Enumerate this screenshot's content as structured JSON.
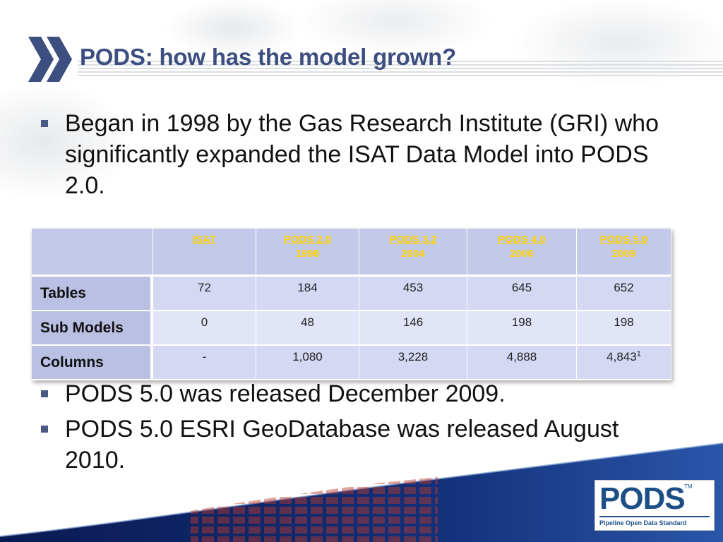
{
  "slide": {
    "title": "PODS: how has the model grown?",
    "bullets_top": [
      "Began in 1998 by the Gas Research Institute (GRI) who significantly expanded the ISAT Data Model into PODS 2.0."
    ],
    "bullets_bottom": [
      "PODS 5.0 was released December 2009.",
      "PODS 5.0 ESRI GeoDatabase was released August 2010."
    ]
  },
  "table": {
    "columns": [
      {
        "version": "ISAT",
        "year": ""
      },
      {
        "version": "PODS 2.0",
        "year": "1998"
      },
      {
        "version": "PODS 3.2",
        "year": "2004"
      },
      {
        "version": "PODS 4.0",
        "year": "2006"
      },
      {
        "version": "PODS 5.0",
        "year": "2009"
      }
    ],
    "rows": [
      {
        "label": "Tables",
        "values": [
          "72",
          "184",
          "453",
          "645",
          "652"
        ]
      },
      {
        "label": "Sub Models",
        "values": [
          "0",
          "48",
          "146",
          "198",
          "198"
        ]
      },
      {
        "label": "Columns",
        "values": [
          "-",
          "1,080",
          "3,228",
          "4,888",
          "4,843"
        ],
        "footnote": "1"
      }
    ]
  },
  "logo": {
    "word": "PODS",
    "trademark": "TM",
    "tagline": "Pipeline Open Data Standard"
  },
  "colors": {
    "title": "#3d4f80",
    "header_text": "#ffd200",
    "table_header_bg": "#c3c9e8",
    "logo_blue": "#1d4f86",
    "footer_navy": "#0d1f5c"
  }
}
